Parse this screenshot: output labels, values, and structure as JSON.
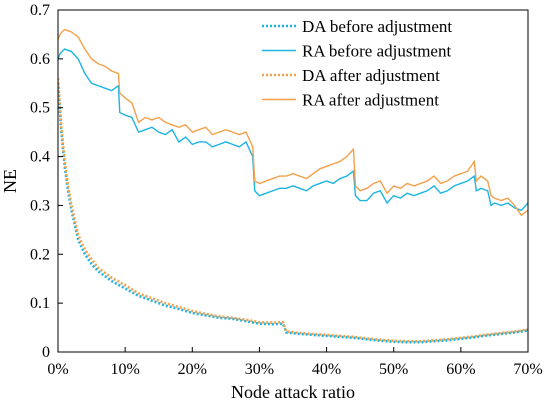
{
  "chart_data": {
    "type": "line",
    "xlabel": "Node attack ratio",
    "ylabel": "NE",
    "xlim": [
      0,
      70
    ],
    "ylim": [
      0,
      0.7
    ],
    "x_ticks": [
      0,
      10,
      20,
      30,
      40,
      50,
      60,
      70
    ],
    "x_tick_labels": [
      "0%",
      "10%",
      "20%",
      "30%",
      "40%",
      "50%",
      "60%",
      "70%"
    ],
    "y_ticks": [
      0,
      0.1,
      0.2,
      0.3,
      0.4,
      0.5,
      0.6,
      0.7
    ],
    "y_tick_labels": [
      "0",
      "0.1",
      "0.2",
      "0.3",
      "0.4",
      "0.5",
      "0.6",
      "0.7"
    ],
    "grid": false,
    "legend_position": "top-right",
    "colors": {
      "before": "#1cb4e2",
      "after": "#f4a04b"
    },
    "series": [
      {
        "name": "DA before adjustment",
        "color": "#1cb4e2",
        "style": "dotted",
        "x": [
          0,
          0.5,
          1,
          1.5,
          2,
          2.5,
          3,
          4,
          5,
          6,
          8,
          10,
          12,
          14,
          16,
          18,
          20,
          22,
          24,
          26,
          28,
          30,
          32,
          33.5,
          34,
          36,
          38,
          40,
          42,
          44,
          46,
          48,
          50,
          52,
          54,
          56,
          58,
          60,
          62,
          64,
          66,
          68,
          70
        ],
        "y": [
          0.55,
          0.45,
          0.38,
          0.33,
          0.29,
          0.26,
          0.23,
          0.2,
          0.18,
          0.165,
          0.145,
          0.13,
          0.115,
          0.105,
          0.095,
          0.088,
          0.08,
          0.075,
          0.07,
          0.068,
          0.063,
          0.058,
          0.057,
          0.058,
          0.04,
          0.037,
          0.035,
          0.033,
          0.031,
          0.029,
          0.026,
          0.023,
          0.021,
          0.02,
          0.02,
          0.022,
          0.024,
          0.027,
          0.03,
          0.034,
          0.037,
          0.04,
          0.044
        ]
      },
      {
        "name": "RA before adjustment",
        "color": "#1cb4e2",
        "style": "solid",
        "x": [
          0,
          0.3,
          0.6,
          1,
          2,
          3,
          4,
          5,
          6,
          7,
          8,
          9,
          9.2,
          10,
          11,
          12,
          13,
          14,
          15,
          16,
          17,
          18,
          19,
          20,
          21,
          22,
          23,
          24,
          25,
          26,
          27,
          28,
          29,
          29.3,
          30,
          31,
          32,
          33,
          34,
          35,
          36,
          37,
          38,
          39,
          40,
          41,
          42,
          43,
          44,
          44.3,
          45,
          46,
          47,
          48,
          49,
          50,
          51,
          52,
          53,
          54,
          55,
          56,
          57,
          58,
          59,
          60,
          61,
          62,
          62.3,
          63,
          64,
          64.5,
          65,
          66,
          67,
          68,
          69,
          70
        ],
        "y": [
          0.6,
          0.61,
          0.615,
          0.62,
          0.615,
          0.6,
          0.57,
          0.55,
          0.545,
          0.54,
          0.535,
          0.545,
          0.49,
          0.485,
          0.48,
          0.45,
          0.455,
          0.46,
          0.45,
          0.445,
          0.455,
          0.43,
          0.44,
          0.425,
          0.43,
          0.43,
          0.42,
          0.425,
          0.43,
          0.425,
          0.42,
          0.43,
          0.4,
          0.33,
          0.32,
          0.325,
          0.33,
          0.335,
          0.335,
          0.34,
          0.335,
          0.33,
          0.34,
          0.345,
          0.35,
          0.345,
          0.355,
          0.36,
          0.37,
          0.32,
          0.31,
          0.31,
          0.325,
          0.33,
          0.305,
          0.32,
          0.315,
          0.325,
          0.32,
          0.325,
          0.33,
          0.34,
          0.325,
          0.33,
          0.34,
          0.345,
          0.35,
          0.36,
          0.33,
          0.335,
          0.33,
          0.3,
          0.305,
          0.3,
          0.305,
          0.295,
          0.29,
          0.305
        ]
      },
      {
        "name": "DA after adjustment",
        "color": "#f4a04b",
        "style": "dotted",
        "x": [
          0,
          0.5,
          1,
          1.5,
          2,
          2.5,
          3,
          4,
          5,
          6,
          8,
          10,
          12,
          14,
          16,
          18,
          20,
          22,
          24,
          26,
          28,
          30,
          32,
          33.5,
          34,
          36,
          38,
          40,
          42,
          44,
          46,
          48,
          50,
          52,
          54,
          56,
          58,
          60,
          62,
          64,
          66,
          68,
          70
        ],
        "y": [
          0.56,
          0.46,
          0.39,
          0.34,
          0.3,
          0.27,
          0.24,
          0.21,
          0.19,
          0.172,
          0.152,
          0.137,
          0.12,
          0.11,
          0.1,
          0.092,
          0.084,
          0.078,
          0.073,
          0.07,
          0.066,
          0.061,
          0.06,
          0.061,
          0.042,
          0.039,
          0.037,
          0.035,
          0.033,
          0.031,
          0.028,
          0.025,
          0.023,
          0.022,
          0.022,
          0.024,
          0.026,
          0.029,
          0.032,
          0.036,
          0.039,
          0.042,
          0.046
        ]
      },
      {
        "name": "RA after adjustment",
        "color": "#f4a04b",
        "style": "solid",
        "x": [
          0,
          0.3,
          0.6,
          1,
          2,
          3,
          4,
          5,
          6,
          7,
          8,
          9,
          9.2,
          10,
          11,
          12,
          13,
          14,
          15,
          16,
          17,
          18,
          19,
          20,
          21,
          22,
          23,
          24,
          25,
          26,
          27,
          28,
          29,
          29.3,
          30,
          31,
          32,
          33,
          34,
          35,
          36,
          37,
          38,
          39,
          40,
          41,
          42,
          43,
          44,
          44.3,
          45,
          46,
          47,
          48,
          49,
          50,
          51,
          52,
          53,
          54,
          55,
          56,
          57,
          58,
          59,
          60,
          61,
          62,
          62.3,
          63,
          64,
          64.5,
          65,
          66,
          67,
          68,
          69,
          70
        ],
        "y": [
          0.64,
          0.65,
          0.655,
          0.66,
          0.655,
          0.645,
          0.62,
          0.6,
          0.59,
          0.585,
          0.575,
          0.57,
          0.53,
          0.52,
          0.51,
          0.47,
          0.48,
          0.475,
          0.48,
          0.47,
          0.465,
          0.46,
          0.465,
          0.45,
          0.455,
          0.46,
          0.445,
          0.45,
          0.455,
          0.45,
          0.445,
          0.45,
          0.42,
          0.35,
          0.345,
          0.35,
          0.355,
          0.36,
          0.36,
          0.365,
          0.36,
          0.355,
          0.365,
          0.375,
          0.38,
          0.385,
          0.39,
          0.4,
          0.415,
          0.34,
          0.33,
          0.335,
          0.345,
          0.35,
          0.325,
          0.34,
          0.335,
          0.345,
          0.34,
          0.345,
          0.35,
          0.36,
          0.345,
          0.35,
          0.36,
          0.365,
          0.37,
          0.39,
          0.35,
          0.36,
          0.35,
          0.32,
          0.315,
          0.31,
          0.315,
          0.3,
          0.28,
          0.29
        ]
      }
    ]
  }
}
